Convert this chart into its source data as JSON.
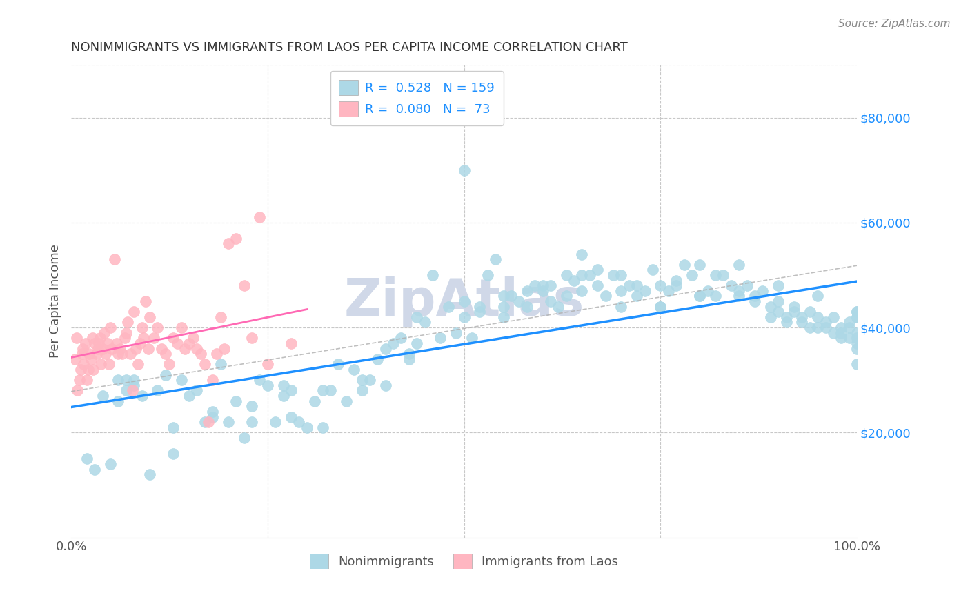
{
  "title": "NONIMMIGRANTS VS IMMIGRANTS FROM LAOS PER CAPITA INCOME CORRELATION CHART",
  "source": "Source: ZipAtlas.com",
  "ylabel": "Per Capita Income",
  "ytick_labels": [
    "$20,000",
    "$40,000",
    "$60,000",
    "$80,000"
  ],
  "ytick_values": [
    20000,
    40000,
    60000,
    80000
  ],
  "ymin": 0,
  "ymax": 90000,
  "xmin": 0,
  "xmax": 1.0,
  "legend_label1": "Nonimmigrants",
  "legend_label2": "Immigrants from Laos",
  "R1": "0.528",
  "N1": "159",
  "R2": "0.080",
  "N2": "73",
  "color_blue_scatter": "#ADD8E6",
  "color_blue_line": "#1E90FF",
  "color_pink_scatter": "#FFB6C1",
  "color_pink_line": "#FF69B4",
  "color_dashed_line": "#B0B0B0",
  "watermark": "ZipAtlas",
  "watermark_color": "#D0D8E8",
  "background_color": "#FFFFFF",
  "grid_color": "#C8C8C8",
  "title_color": "#333333",
  "nonimmigrant_x": [
    0.02,
    0.03,
    0.05,
    0.06,
    0.06,
    0.07,
    0.07,
    0.08,
    0.09,
    0.1,
    0.11,
    0.12,
    0.13,
    0.14,
    0.15,
    0.16,
    0.17,
    0.18,
    0.19,
    0.2,
    0.21,
    0.22,
    0.23,
    0.23,
    0.24,
    0.25,
    0.26,
    0.27,
    0.28,
    0.28,
    0.29,
    0.3,
    0.31,
    0.32,
    0.33,
    0.34,
    0.35,
    0.36,
    0.37,
    0.38,
    0.39,
    0.4,
    0.4,
    0.41,
    0.42,
    0.43,
    0.44,
    0.44,
    0.45,
    0.46,
    0.47,
    0.48,
    0.49,
    0.5,
    0.5,
    0.51,
    0.52,
    0.52,
    0.53,
    0.54,
    0.55,
    0.55,
    0.56,
    0.57,
    0.58,
    0.58,
    0.59,
    0.6,
    0.61,
    0.61,
    0.62,
    0.63,
    0.63,
    0.64,
    0.65,
    0.65,
    0.66,
    0.67,
    0.67,
    0.68,
    0.69,
    0.7,
    0.7,
    0.71,
    0.72,
    0.72,
    0.73,
    0.74,
    0.75,
    0.75,
    0.76,
    0.77,
    0.77,
    0.78,
    0.79,
    0.8,
    0.8,
    0.81,
    0.82,
    0.82,
    0.83,
    0.84,
    0.85,
    0.85,
    0.86,
    0.87,
    0.87,
    0.88,
    0.89,
    0.89,
    0.9,
    0.9,
    0.91,
    0.91,
    0.92,
    0.92,
    0.93,
    0.93,
    0.94,
    0.94,
    0.95,
    0.95,
    0.96,
    0.96,
    0.97,
    0.97,
    0.98,
    0.98,
    0.98,
    0.99,
    0.99,
    0.99,
    1.0,
    1.0,
    1.0,
    1.0,
    1.0,
    1.0,
    1.0,
    1.0,
    0.04,
    0.08,
    0.13,
    0.18,
    0.27,
    0.32,
    0.37,
    0.43,
    0.5,
    0.55,
    0.6,
    0.65,
    0.7,
    0.75,
    0.8,
    0.85,
    0.9,
    0.95,
    1.0
  ],
  "nonimmigrant_y": [
    15000,
    13000,
    14000,
    30000,
    26000,
    30000,
    28000,
    29000,
    27000,
    12000,
    28000,
    31000,
    16000,
    30000,
    27000,
    28000,
    22000,
    23000,
    33000,
    22000,
    26000,
    19000,
    25000,
    22000,
    30000,
    29000,
    22000,
    27000,
    28000,
    23000,
    22000,
    21000,
    26000,
    21000,
    28000,
    33000,
    26000,
    32000,
    28000,
    30000,
    34000,
    29000,
    36000,
    37000,
    38000,
    35000,
    42000,
    37000,
    41000,
    50000,
    38000,
    44000,
    39000,
    45000,
    42000,
    38000,
    43000,
    44000,
    50000,
    53000,
    46000,
    44000,
    46000,
    45000,
    47000,
    44000,
    48000,
    47000,
    48000,
    45000,
    44000,
    50000,
    46000,
    49000,
    47000,
    50000,
    50000,
    51000,
    48000,
    46000,
    50000,
    44000,
    47000,
    48000,
    46000,
    48000,
    47000,
    51000,
    48000,
    44000,
    47000,
    49000,
    48000,
    52000,
    50000,
    46000,
    52000,
    47000,
    46000,
    50000,
    50000,
    48000,
    46000,
    47000,
    48000,
    45000,
    46000,
    47000,
    44000,
    42000,
    45000,
    43000,
    42000,
    41000,
    44000,
    43000,
    42000,
    41000,
    43000,
    40000,
    42000,
    40000,
    41000,
    40000,
    42000,
    39000,
    40000,
    39000,
    38000,
    40000,
    41000,
    38000,
    43000,
    39000,
    37000,
    38000,
    42000,
    36000,
    43000,
    42000,
    27000,
    30000,
    21000,
    24000,
    29000,
    28000,
    30000,
    34000,
    70000,
    42000,
    48000,
    54000,
    50000,
    44000,
    46000,
    52000,
    48000,
    46000,
    33000
  ],
  "immigrant_x": [
    0.005,
    0.007,
    0.008,
    0.01,
    0.012,
    0.014,
    0.015,
    0.016,
    0.018,
    0.02,
    0.022,
    0.023,
    0.025,
    0.027,
    0.028,
    0.03,
    0.032,
    0.034,
    0.035,
    0.037,
    0.038,
    0.04,
    0.042,
    0.044,
    0.046,
    0.048,
    0.05,
    0.052,
    0.055,
    0.058,
    0.06,
    0.062,
    0.065,
    0.068,
    0.07,
    0.072,
    0.075,
    0.078,
    0.08,
    0.082,
    0.085,
    0.088,
    0.09,
    0.092,
    0.095,
    0.098,
    0.1,
    0.105,
    0.11,
    0.115,
    0.12,
    0.125,
    0.13,
    0.135,
    0.14,
    0.145,
    0.15,
    0.155,
    0.16,
    0.165,
    0.17,
    0.175,
    0.18,
    0.185,
    0.19,
    0.195,
    0.2,
    0.21,
    0.22,
    0.23,
    0.24,
    0.25,
    0.28
  ],
  "immigrant_y": [
    34000,
    38000,
    28000,
    30000,
    32000,
    35000,
    36000,
    33000,
    37000,
    30000,
    32000,
    35000,
    34000,
    38000,
    32000,
    37000,
    35000,
    36000,
    37000,
    38000,
    33000,
    36000,
    39000,
    35000,
    37000,
    33000,
    40000,
    36000,
    53000,
    37000,
    35000,
    36000,
    35000,
    38000,
    39000,
    41000,
    35000,
    28000,
    43000,
    36000,
    33000,
    37000,
    40000,
    38000,
    45000,
    36000,
    42000,
    38000,
    40000,
    36000,
    35000,
    33000,
    38000,
    37000,
    40000,
    36000,
    37000,
    38000,
    36000,
    35000,
    33000,
    22000,
    30000,
    35000,
    42000,
    36000,
    56000,
    57000,
    48000,
    38000,
    61000,
    33000,
    37000
  ]
}
